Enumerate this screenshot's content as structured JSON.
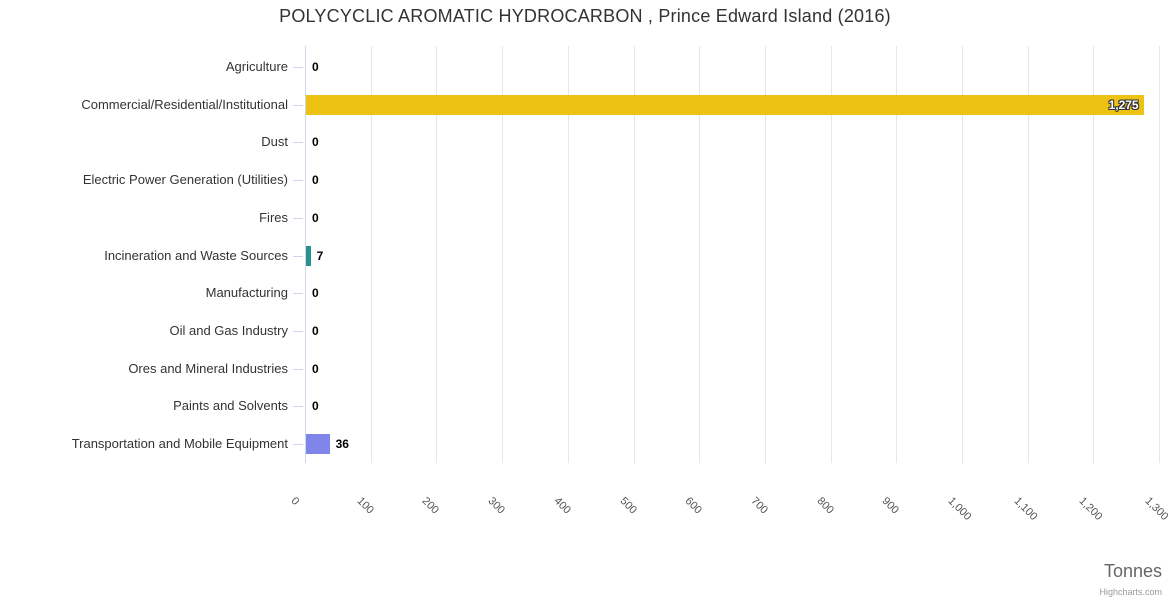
{
  "chart": {
    "title": "POLYCYCLIC AROMATIC HYDROCARBON , Prince Edward Island (2016)",
    "unit_label": "Tonnes",
    "credit": "Highcharts.com"
  },
  "chart_data": {
    "type": "bar",
    "orientation": "horizontal",
    "title": "POLYCYCLIC AROMATIC HYDROCARBON , Prince Edward Island (2016)",
    "categories": [
      "Agriculture",
      "Commercial/Residential/Institutional",
      "Dust",
      "Electric Power Generation (Utilities)",
      "Fires",
      "Incineration and Waste Sources",
      "Manufacturing",
      "Oil and Gas Industry",
      "Ores and Mineral Industries",
      "Paints and Solvents",
      "Transportation and Mobile Equipment"
    ],
    "values": [
      0,
      1275,
      0,
      0,
      0,
      7,
      0,
      0,
      0,
      0,
      36
    ],
    "value_labels": [
      "0",
      "1,275",
      "0",
      "0",
      "0",
      "7",
      "0",
      "0",
      "0",
      "0",
      "36"
    ],
    "bar_colors": [
      null,
      "#EEC213",
      null,
      null,
      null,
      "#2B908F",
      null,
      null,
      null,
      null,
      "#8085E9"
    ],
    "xlabel": "Tonnes",
    "ylabel": "",
    "xlim": [
      0,
      1300
    ],
    "x_tick_interval": 100,
    "x_tick_labels": [
      "0",
      "100",
      "200",
      "300",
      "400",
      "500",
      "600",
      "700",
      "800",
      "900",
      "1,000",
      "1,100",
      "1,200",
      "1,300"
    ],
    "grid": true,
    "legend": false,
    "credit": "Highcharts.com"
  },
  "colors": {
    "background": "#FFFFFF",
    "grid": "#E6E6E6",
    "axis_line": "#CCD6EB",
    "title_text": "#333333",
    "category_text": "#333333",
    "tick_text": "#555555",
    "data_label_text": "#000000",
    "inside_label_text": "#FFFFFF",
    "unit_text": "#666666",
    "credit_text": "#999999"
  }
}
